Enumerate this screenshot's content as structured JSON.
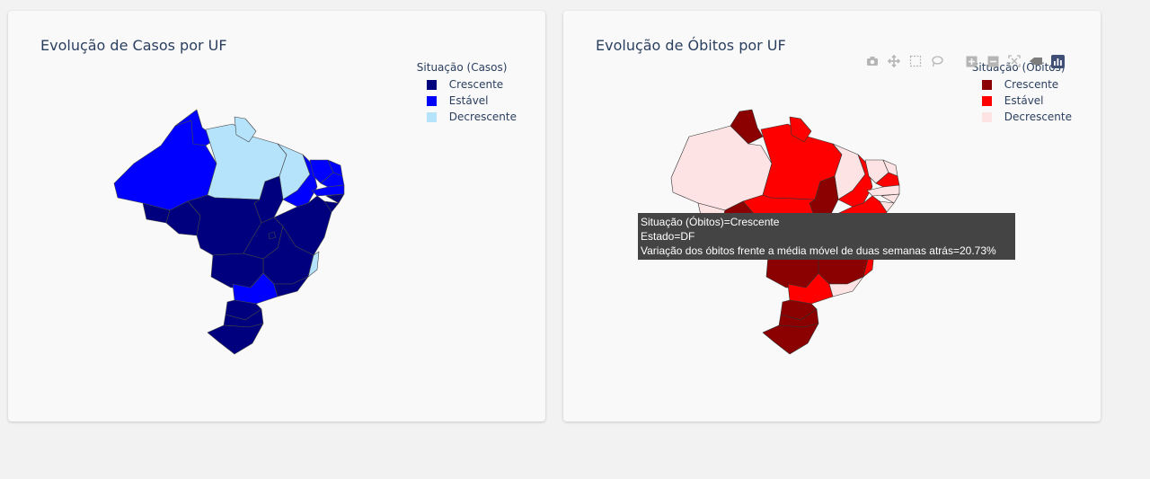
{
  "cases": {
    "title": "Evolução de Casos por UF",
    "legend": {
      "title": "Situação (Casos)",
      "items": [
        {
          "label": "Crescente",
          "color": "#00007f"
        },
        {
          "label": "Estável",
          "color": "#0000ff"
        },
        {
          "label": "Decrescente",
          "color": "#b5e3fb"
        }
      ]
    }
  },
  "deaths": {
    "title": "Evolução de Óbitos por UF",
    "legend": {
      "title": "Situação (Óbitos)",
      "items": [
        {
          "label": "Crescente",
          "color": "#8b0000"
        },
        {
          "label": "Estável",
          "color": "#ff0000"
        },
        {
          "label": "Decrescente",
          "color": "#fde3e3"
        }
      ]
    },
    "tooltip": {
      "line1": "Situação (Óbitos)=Crescente",
      "line2": "Estado=DF",
      "line3": "Variação dos óbitos frente a média móvel de duas semanas atrás=20.73%"
    }
  },
  "modebar": {
    "buttons": [
      "camera-icon",
      "pan-icon",
      "box-select-icon",
      "lasso-icon",
      "zoom-in-icon",
      "zoom-out-icon",
      "autoscale-icon",
      "reset-axes-icon",
      "plotly-logo-icon"
    ]
  },
  "chart_data": [
    {
      "type": "choropleth",
      "title": "Evolução de Casos por UF",
      "legend_title": "Situação (Casos)",
      "categories": [
        "Crescente",
        "Estável",
        "Decrescente"
      ],
      "regions": {
        "AM": "Estável",
        "RR": "Estável",
        "AC": "Crescente",
        "RO": "Crescente",
        "PA": "Decrescente",
        "AP": "Decrescente",
        "MA": "Decrescente",
        "PI": "Estável",
        "CE": "Estável",
        "RN": "Estável",
        "PB": "Estável",
        "PE": "Estável",
        "AL": "Crescente",
        "SE": "Crescente",
        "BA": "Crescente",
        "TO": "Crescente",
        "MT": "Crescente",
        "GO": "Crescente",
        "DF": "Crescente",
        "MS": "Crescente",
        "MG": "Crescente",
        "ES": "Decrescente",
        "RJ": "Crescente",
        "SP": "Estável",
        "PR": "Crescente",
        "SC": "Crescente",
        "RS": "Crescente"
      }
    },
    {
      "type": "choropleth",
      "title": "Evolução de Óbitos por UF",
      "legend_title": "Situação (Óbitos)",
      "categories": [
        "Crescente",
        "Estável",
        "Decrescente"
      ],
      "regions": {
        "AM": "Decrescente",
        "AC": "Decrescente",
        "RR": "Crescente",
        "RO": "Crescente",
        "PA": "Estável",
        "AP": "Estável",
        "MA": "Decrescente",
        "TO": "Crescente",
        "PI": "Estável",
        "CE": "Decrescente",
        "RN": "Decrescente",
        "PB": "Estável",
        "PE": "Decrescente",
        "AL": "Decrescente",
        "SE": "Decrescente",
        "BA": "Estável",
        "MT": "Estável",
        "GO": "Crescente",
        "DF": "Crescente",
        "MS": "Crescente",
        "MG": "Crescente",
        "ES": "Estável",
        "RJ": "Decrescente",
        "SP": "Estável",
        "PR": "Crescente",
        "SC": "Crescente",
        "RS": "Crescente"
      }
    }
  ]
}
